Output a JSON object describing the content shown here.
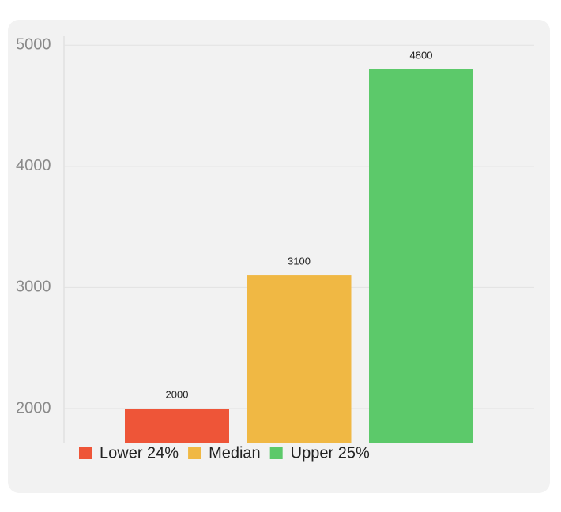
{
  "chart_data": {
    "type": "bar",
    "categories": [
      null
    ],
    "series": [
      {
        "name": "Lower 24%",
        "color": "#ee5538",
        "values": [
          2000
        ]
      },
      {
        "name": "Median",
        "color": "#f0b844",
        "values": [
          3100
        ]
      },
      {
        "name": "Upper 25%",
        "color": "#5cc96a",
        "values": [
          4800
        ]
      }
    ],
    "ylim": [
      1720,
      5080
    ],
    "yticks": [
      2000,
      3000,
      4000,
      5000
    ],
    "grid": true,
    "legend": "bottom"
  }
}
